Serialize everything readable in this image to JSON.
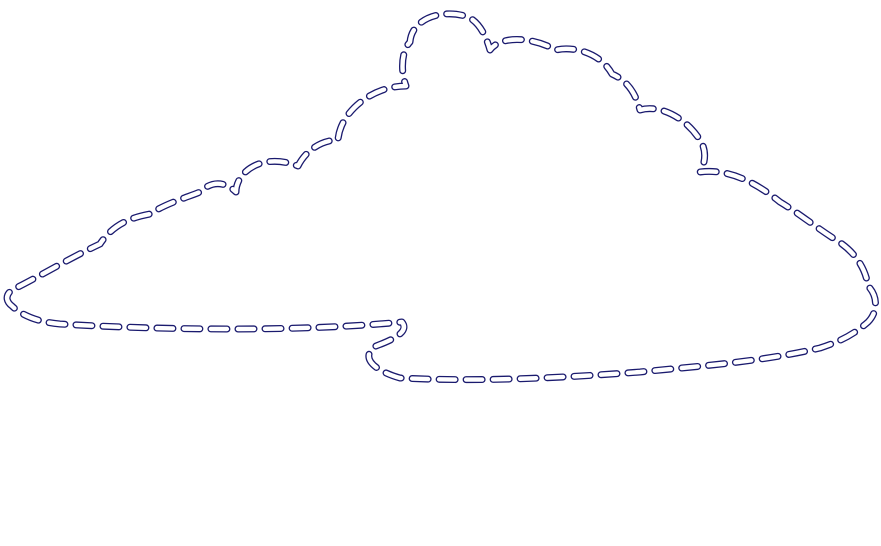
{
  "figure": {
    "shape_name": "cloud-speech-bubble-outline",
    "stroke_color": "#1a1a6e",
    "background_color": "#ffffff",
    "line_style": "dashed"
  }
}
